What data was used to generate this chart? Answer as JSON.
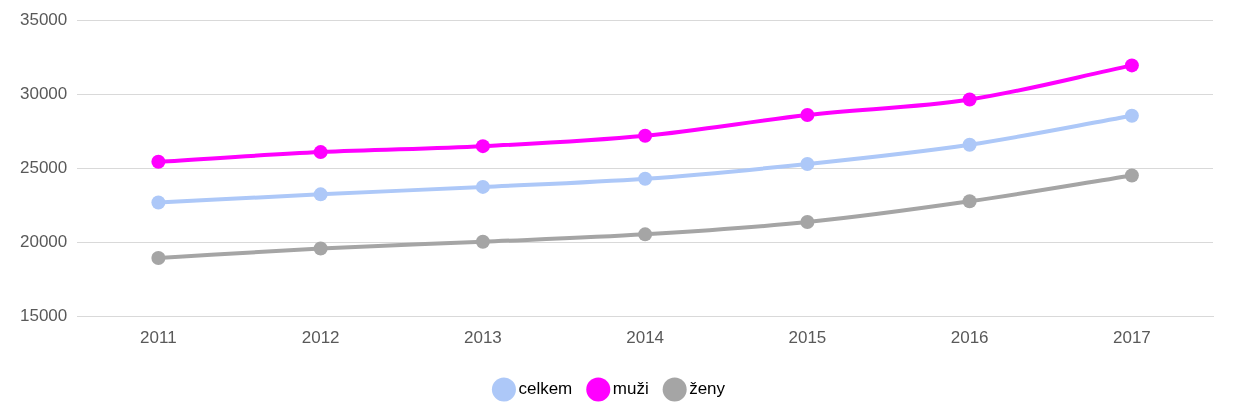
{
  "chart_data": {
    "type": "line",
    "categories": [
      "2011",
      "2012",
      "2013",
      "2014",
      "2015",
      "2016",
      "2017"
    ],
    "series": [
      {
        "name": "celkem",
        "color": "#adc8f8",
        "values": [
          22700,
          23250,
          23750,
          24300,
          25300,
          26600,
          28550
        ]
      },
      {
        "name": "muži",
        "color": "#ff00ff",
        "values": [
          25450,
          26100,
          26500,
          27200,
          28600,
          29650,
          31950
        ]
      },
      {
        "name": "ženy",
        "color": "#a5a5a5",
        "values": [
          18950,
          19600,
          20050,
          20550,
          21380,
          22780,
          24520
        ]
      }
    ],
    "ylim": [
      15000,
      35000
    ],
    "yticks": [
      15000,
      20000,
      25000,
      30000,
      35000
    ],
    "grid": "y",
    "legend": "bottom",
    "marker": "circle",
    "line_style": "solid"
  }
}
